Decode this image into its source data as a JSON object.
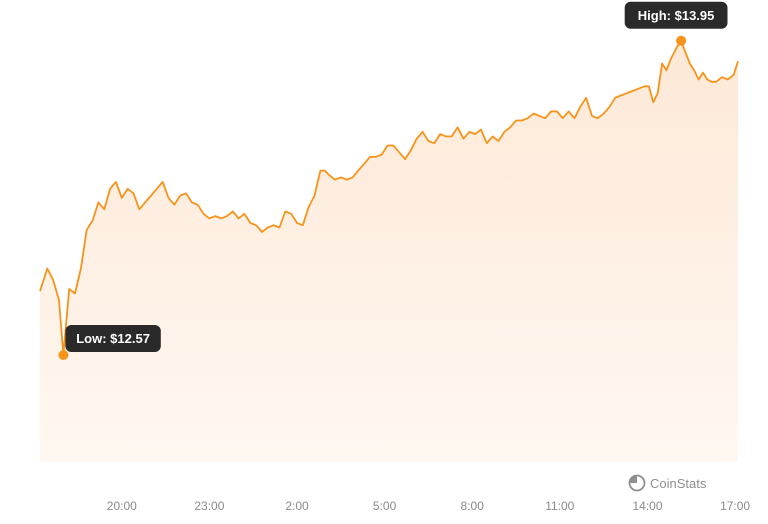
{
  "chart_data": {
    "type": "area",
    "title": "",
    "xlabel": "",
    "ylabel": "",
    "x_ticks": [
      "20:00",
      "23:00",
      "2:00",
      "5:00",
      "8:00",
      "11:00",
      "14:00",
      "17:00"
    ],
    "x_hours_from_start": [
      2.8,
      5.8,
      8.8,
      11.8,
      14.8,
      17.8,
      20.8,
      23.8
    ],
    "ylim": [
      12.1,
      14.05
    ],
    "series": [
      {
        "name": "",
        "color": "#f7931a",
        "points": [
          [
            0.0,
            12.85
          ],
          [
            0.25,
            12.95
          ],
          [
            0.45,
            12.9
          ],
          [
            0.65,
            12.81
          ],
          [
            0.8,
            12.57
          ],
          [
            1.0,
            12.86
          ],
          [
            1.2,
            12.84
          ],
          [
            1.4,
            12.95
          ],
          [
            1.6,
            13.12
          ],
          [
            1.8,
            13.16
          ],
          [
            2.0,
            13.24
          ],
          [
            2.2,
            13.21
          ],
          [
            2.4,
            13.3
          ],
          [
            2.6,
            13.33
          ],
          [
            2.8,
            13.26
          ],
          [
            3.0,
            13.3
          ],
          [
            3.2,
            13.28
          ],
          [
            3.4,
            13.21
          ],
          [
            3.6,
            13.24
          ],
          [
            3.8,
            13.27
          ],
          [
            4.0,
            13.3
          ],
          [
            4.2,
            13.33
          ],
          [
            4.4,
            13.26
          ],
          [
            4.6,
            13.23
          ],
          [
            4.8,
            13.27
          ],
          [
            5.0,
            13.28
          ],
          [
            5.2,
            13.24
          ],
          [
            5.4,
            13.23
          ],
          [
            5.6,
            13.19
          ],
          [
            5.8,
            13.17
          ],
          [
            6.0,
            13.18
          ],
          [
            6.2,
            13.17
          ],
          [
            6.4,
            13.18
          ],
          [
            6.6,
            13.2
          ],
          [
            6.8,
            13.17
          ],
          [
            7.0,
            13.19
          ],
          [
            7.2,
            13.15
          ],
          [
            7.4,
            13.14
          ],
          [
            7.6,
            13.11
          ],
          [
            7.8,
            13.13
          ],
          [
            8.0,
            13.14
          ],
          [
            8.2,
            13.13
          ],
          [
            8.4,
            13.2
          ],
          [
            8.6,
            13.19
          ],
          [
            8.8,
            13.15
          ],
          [
            9.0,
            13.14
          ],
          [
            9.2,
            13.22
          ],
          [
            9.4,
            13.27
          ],
          [
            9.6,
            13.38
          ],
          [
            9.75,
            13.38
          ],
          [
            9.9,
            13.36
          ],
          [
            10.1,
            13.34
          ],
          [
            10.3,
            13.35
          ],
          [
            10.5,
            13.34
          ],
          [
            10.7,
            13.35
          ],
          [
            10.9,
            13.38
          ],
          [
            11.1,
            13.41
          ],
          [
            11.3,
            13.44
          ],
          [
            11.5,
            13.44
          ],
          [
            11.7,
            13.45
          ],
          [
            11.9,
            13.49
          ],
          [
            12.1,
            13.49
          ],
          [
            12.3,
            13.46
          ],
          [
            12.5,
            13.43
          ],
          [
            12.7,
            13.47
          ],
          [
            12.9,
            13.52
          ],
          [
            13.1,
            13.55
          ],
          [
            13.3,
            13.51
          ],
          [
            13.5,
            13.5
          ],
          [
            13.7,
            13.54
          ],
          [
            13.9,
            13.53
          ],
          [
            14.1,
            13.53
          ],
          [
            14.3,
            13.57
          ],
          [
            14.5,
            13.52
          ],
          [
            14.7,
            13.55
          ],
          [
            14.9,
            13.54
          ],
          [
            15.1,
            13.56
          ],
          [
            15.3,
            13.5
          ],
          [
            15.5,
            13.53
          ],
          [
            15.7,
            13.51
          ],
          [
            15.9,
            13.55
          ],
          [
            16.1,
            13.57
          ],
          [
            16.3,
            13.6
          ],
          [
            16.5,
            13.6
          ],
          [
            16.7,
            13.61
          ],
          [
            16.9,
            13.63
          ],
          [
            17.1,
            13.62
          ],
          [
            17.3,
            13.61
          ],
          [
            17.5,
            13.64
          ],
          [
            17.7,
            13.64
          ],
          [
            17.9,
            13.61
          ],
          [
            18.1,
            13.64
          ],
          [
            18.3,
            13.61
          ],
          [
            18.5,
            13.66
          ],
          [
            18.7,
            13.7
          ],
          [
            18.9,
            13.62
          ],
          [
            19.1,
            13.61
          ],
          [
            19.3,
            13.63
          ],
          [
            19.5,
            13.66
          ],
          [
            19.7,
            13.7
          ],
          [
            19.9,
            13.71
          ],
          [
            20.1,
            13.72
          ],
          [
            20.3,
            13.73
          ],
          [
            20.5,
            13.74
          ],
          [
            20.7,
            13.75
          ],
          [
            20.85,
            13.75
          ],
          [
            21.0,
            13.68
          ],
          [
            21.15,
            13.72
          ],
          [
            21.3,
            13.85
          ],
          [
            21.45,
            13.82
          ],
          [
            21.6,
            13.87
          ],
          [
            21.8,
            13.92
          ],
          [
            21.95,
            13.95
          ],
          [
            22.1,
            13.9
          ],
          [
            22.25,
            13.85
          ],
          [
            22.4,
            13.82
          ],
          [
            22.55,
            13.78
          ],
          [
            22.7,
            13.81
          ],
          [
            22.85,
            13.78
          ],
          [
            23.0,
            13.77
          ],
          [
            23.15,
            13.77
          ],
          [
            23.35,
            13.79
          ],
          [
            23.55,
            13.78
          ],
          [
            23.75,
            13.8
          ],
          [
            23.9,
            13.86
          ]
        ]
      }
    ],
    "annotations": [
      {
        "label": "High: $13.95",
        "x": 21.95,
        "y": 13.95
      },
      {
        "label": "Low: $12.57",
        "x": 0.8,
        "y": 12.57
      }
    ],
    "grid": false,
    "legend": "none",
    "fill_gradient_top": "#fde8d6",
    "fill_gradient_bottom": "#fff8f2",
    "callout_bg": "#2a2a2a"
  },
  "brand": {
    "name": "CoinStats"
  }
}
